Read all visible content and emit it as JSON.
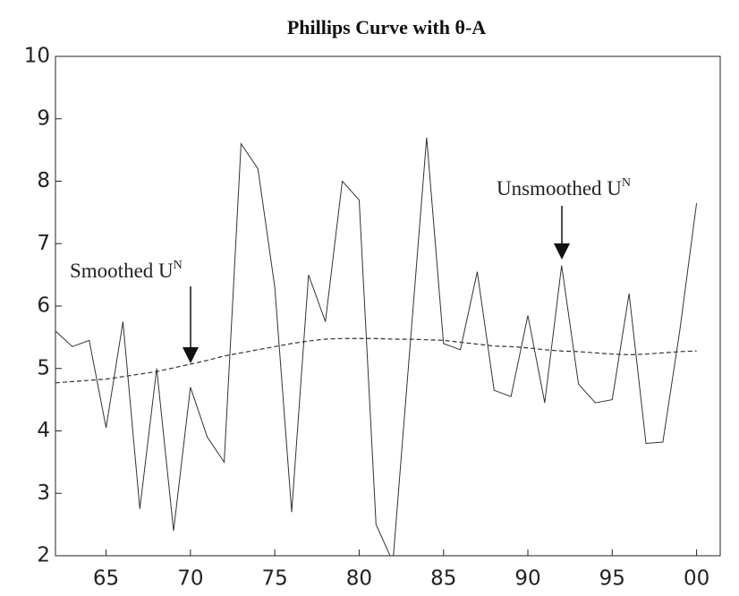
{
  "chart_data": {
    "type": "line",
    "title": "Phillips Curve with θ-A",
    "x": [
      62,
      63,
      64,
      65,
      66,
      67,
      68,
      69,
      70,
      71,
      72,
      73,
      74,
      75,
      76,
      77,
      78,
      79,
      80,
      81,
      82,
      83,
      84,
      85,
      86,
      87,
      88,
      89,
      90,
      91,
      92,
      93,
      94,
      95,
      96,
      97,
      98,
      99,
      100
    ],
    "series": [
      {
        "color": "#333333",
        "dashed": false,
        "values": [
          5.6,
          5.35,
          5.45,
          4.05,
          5.75,
          2.75,
          5.0,
          2.4,
          4.7,
          3.9,
          3.5,
          8.6,
          8.2,
          6.3,
          2.7,
          6.5,
          5.75,
          8.0,
          7.7,
          2.5,
          1.9,
          5.3,
          8.7,
          5.4,
          5.3,
          6.55,
          4.65,
          4.55,
          5.85,
          4.45,
          6.65,
          4.75,
          4.45,
          4.5,
          6.2,
          3.8,
          3.82,
          5.6,
          7.65
        ]
      },
      {
        "color": "#333333",
        "dashed": true,
        "values": [
          4.77,
          4.79,
          4.81,
          4.83,
          4.87,
          4.91,
          4.95,
          5.01,
          5.07,
          5.13,
          5.2,
          5.25,
          5.3,
          5.35,
          5.4,
          5.44,
          5.47,
          5.48,
          5.48,
          5.48,
          5.47,
          5.47,
          5.46,
          5.45,
          5.42,
          5.39,
          5.36,
          5.35,
          5.33,
          5.3,
          5.28,
          5.27,
          5.25,
          5.23,
          5.22,
          5.23,
          5.25,
          5.27,
          5.28
        ]
      }
    ],
    "annotations": [
      {
        "text": "Smoothed U",
        "sup": "N"
      },
      {
        "text": "Unsmoothed U",
        "sup": "N"
      }
    ],
    "xlim": [
      62,
      101.4
    ],
    "xticks": [
      65,
      70,
      75,
      80,
      85,
      90,
      95,
      {
        "value": 100,
        "label": "00"
      }
    ],
    "ylim": [
      2,
      10
    ],
    "yticks": [
      2,
      3,
      4,
      5,
      6,
      7,
      8,
      9,
      10
    ],
    "grid": false
  }
}
